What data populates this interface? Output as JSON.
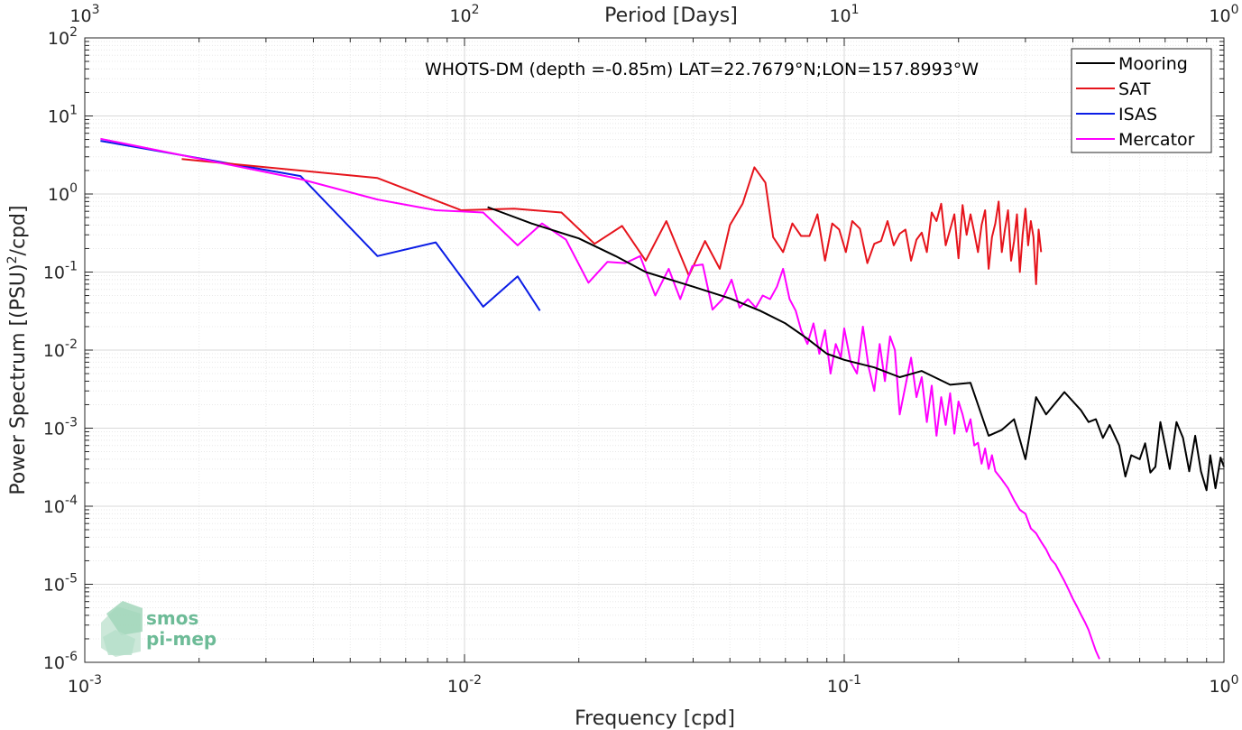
{
  "chart_data": {
    "type": "line",
    "title": "WHOTS-DM (depth =-0.85m) LAT=22.7679°N;LON=157.8993°W",
    "xlabel": "Frequency [cpd]",
    "ylabel": "Power Spectrum [(PSU)",
    "ylabel_sup": "2",
    "ylabel_tail": "/cpd]",
    "top_xlabel": "Period [Days]",
    "x_scale": "log",
    "y_scale": "log",
    "xlim": [
      0.001,
      1
    ],
    "ylim": [
      1e-06,
      100
    ],
    "grid": true,
    "legend_position": "top-right",
    "x_ticks": [
      {
        "v": 0.001,
        "base": "10",
        "exp": "-3"
      },
      {
        "v": 0.01,
        "base": "10",
        "exp": "-2"
      },
      {
        "v": 0.1,
        "base": "10",
        "exp": "-1"
      },
      {
        "v": 1,
        "base": "10",
        "exp": "0"
      }
    ],
    "top_ticks": [
      {
        "v": 0.001,
        "base": "10",
        "exp": "3"
      },
      {
        "v": 0.01,
        "base": "10",
        "exp": "2"
      },
      {
        "v": 0.1,
        "base": "10",
        "exp": "1"
      },
      {
        "v": 1,
        "base": "10",
        "exp": "0"
      }
    ],
    "y_ticks": [
      {
        "v": 1e-06,
        "base": "10",
        "exp": "-6"
      },
      {
        "v": 1e-05,
        "base": "10",
        "exp": "-5"
      },
      {
        "v": 0.0001,
        "base": "10",
        "exp": "-4"
      },
      {
        "v": 0.001,
        "base": "10",
        "exp": "-3"
      },
      {
        "v": 0.01,
        "base": "10",
        "exp": "-2"
      },
      {
        "v": 0.1,
        "base": "10",
        "exp": "-1"
      },
      {
        "v": 1,
        "base": "10",
        "exp": "0"
      },
      {
        "v": 10,
        "base": "10",
        "exp": "1"
      },
      {
        "v": 100,
        "base": "10",
        "exp": "2"
      }
    ],
    "series": [
      {
        "name": "Mooring",
        "color": "#000000",
        "x": [
          0.0115,
          0.015,
          0.02,
          0.025,
          0.03,
          0.04,
          0.05,
          0.06,
          0.07,
          0.08,
          0.09,
          0.1,
          0.12,
          0.14,
          0.16,
          0.19,
          0.215,
          0.24,
          0.26,
          0.28,
          0.3,
          0.32,
          0.34,
          0.38,
          0.42,
          0.44,
          0.46,
          0.48,
          0.5,
          0.53,
          0.55,
          0.57,
          0.6,
          0.62,
          0.64,
          0.66,
          0.68,
          0.7,
          0.72,
          0.75,
          0.78,
          0.81,
          0.84,
          0.87,
          0.9,
          0.92,
          0.95,
          0.98,
          1.0
        ],
        "y": [
          0.68,
          0.42,
          0.27,
          0.16,
          0.1,
          0.065,
          0.046,
          0.032,
          0.022,
          0.014,
          0.009,
          0.0075,
          0.006,
          0.0045,
          0.0054,
          0.0036,
          0.0038,
          0.0008,
          0.00095,
          0.0013,
          0.0004,
          0.0025,
          0.0015,
          0.0029,
          0.0017,
          0.0012,
          0.0013,
          0.00075,
          0.0011,
          0.0006,
          0.00024,
          0.00045,
          0.0004,
          0.00064,
          0.00027,
          0.00032,
          0.0012,
          0.0006,
          0.0003,
          0.0012,
          0.00075,
          0.00028,
          0.0008,
          0.00028,
          0.00016,
          0.00045,
          0.00017,
          0.00042,
          0.00032
        ]
      },
      {
        "name": "SAT",
        "color": "#e6141c",
        "x": [
          0.0018,
          0.0059,
          0.0098,
          0.0135,
          0.018,
          0.022,
          0.026,
          0.03,
          0.034,
          0.039,
          0.043,
          0.047,
          0.05,
          0.054,
          0.058,
          0.062,
          0.065,
          0.069,
          0.073,
          0.077,
          0.081,
          0.085,
          0.089,
          0.093,
          0.097,
          0.101,
          0.105,
          0.11,
          0.115,
          0.12,
          0.125,
          0.13,
          0.135,
          0.14,
          0.145,
          0.15,
          0.155,
          0.16,
          0.165,
          0.17,
          0.175,
          0.18,
          0.185,
          0.19,
          0.195,
          0.2,
          0.205,
          0.21,
          0.215,
          0.22,
          0.225,
          0.23,
          0.235,
          0.24,
          0.245,
          0.25,
          0.255,
          0.26,
          0.265,
          0.27,
          0.275,
          0.28,
          0.285,
          0.29,
          0.295,
          0.3,
          0.305,
          0.31,
          0.315,
          0.32,
          0.325,
          0.33
        ],
        "y": [
          2.8,
          1.6,
          0.62,
          0.65,
          0.58,
          0.23,
          0.39,
          0.14,
          0.45,
          0.09,
          0.25,
          0.11,
          0.4,
          0.75,
          2.2,
          1.4,
          0.28,
          0.18,
          0.42,
          0.29,
          0.29,
          0.55,
          0.14,
          0.42,
          0.35,
          0.18,
          0.45,
          0.36,
          0.13,
          0.23,
          0.25,
          0.45,
          0.22,
          0.31,
          0.35,
          0.14,
          0.26,
          0.32,
          0.18,
          0.58,
          0.45,
          0.75,
          0.22,
          0.35,
          0.55,
          0.15,
          0.72,
          0.3,
          0.55,
          0.32,
          0.18,
          0.4,
          0.62,
          0.11,
          0.28,
          0.42,
          0.8,
          0.18,
          0.35,
          0.62,
          0.14,
          0.25,
          0.55,
          0.1,
          0.3,
          0.65,
          0.22,
          0.45,
          0.28,
          0.07,
          0.35,
          0.18
        ]
      },
      {
        "name": "ISAS",
        "color": "#0b1de6",
        "x": [
          0.0011,
          0.0037,
          0.0059,
          0.0084,
          0.0112,
          0.0138,
          0.0158
        ],
        "y": [
          4.8,
          1.7,
          0.16,
          0.24,
          0.036,
          0.088,
          0.032
        ]
      },
      {
        "name": "Mercator",
        "color": "#ff00ff",
        "x": [
          0.0011,
          0.0037,
          0.0059,
          0.0084,
          0.0112,
          0.0138,
          0.016,
          0.0185,
          0.0212,
          0.0238,
          0.0265,
          0.029,
          0.0318,
          0.0345,
          0.037,
          0.0398,
          0.0424,
          0.045,
          0.0478,
          0.0505,
          0.053,
          0.0558,
          0.0585,
          0.061,
          0.0638,
          0.0665,
          0.069,
          0.0718,
          0.0745,
          0.077,
          0.08,
          0.083,
          0.086,
          0.089,
          0.092,
          0.095,
          0.098,
          0.1,
          0.104,
          0.108,
          0.112,
          0.116,
          0.12,
          0.124,
          0.128,
          0.132,
          0.136,
          0.14,
          0.145,
          0.15,
          0.155,
          0.16,
          0.165,
          0.17,
          0.175,
          0.18,
          0.185,
          0.19,
          0.195,
          0.2,
          0.205,
          0.21,
          0.215,
          0.22,
          0.225,
          0.23,
          0.235,
          0.24,
          0.245,
          0.25,
          0.26,
          0.27,
          0.28,
          0.29,
          0.3,
          0.31,
          0.32,
          0.33,
          0.34,
          0.35,
          0.36,
          0.37,
          0.38,
          0.39,
          0.4,
          0.41,
          0.42,
          0.43,
          0.44,
          0.45,
          0.46,
          0.47
        ],
        "y": [
          5.1,
          1.55,
          0.85,
          0.62,
          0.58,
          0.22,
          0.42,
          0.26,
          0.073,
          0.135,
          0.13,
          0.16,
          0.05,
          0.11,
          0.045,
          0.12,
          0.125,
          0.033,
          0.045,
          0.08,
          0.035,
          0.045,
          0.035,
          0.05,
          0.045,
          0.065,
          0.11,
          0.045,
          0.032,
          0.018,
          0.012,
          0.022,
          0.009,
          0.018,
          0.005,
          0.012,
          0.008,
          0.019,
          0.007,
          0.005,
          0.02,
          0.006,
          0.003,
          0.012,
          0.004,
          0.015,
          0.01,
          0.0015,
          0.0035,
          0.008,
          0.0025,
          0.0045,
          0.0012,
          0.0035,
          0.0008,
          0.0025,
          0.0011,
          0.0028,
          0.00085,
          0.0022,
          0.0015,
          0.0009,
          0.0013,
          0.0006,
          0.00065,
          0.00035,
          0.00055,
          0.0003,
          0.00045,
          0.00028,
          0.00022,
          0.00017,
          0.00012,
          9e-05,
          8e-05,
          5.2e-05,
          4.5e-05,
          3.5e-05,
          2.8e-05,
          2.1e-05,
          1.8e-05,
          1.4e-05,
          1.1e-05,
          8.5e-06,
          6.5e-06,
          5.2e-06,
          4.1e-06,
          3.3e-06,
          2.6e-06,
          1.9e-06,
          1.4e-06,
          1.1e-06
        ]
      }
    ]
  },
  "logo": {
    "line1": "smos",
    "line2": "pi-mep"
  }
}
